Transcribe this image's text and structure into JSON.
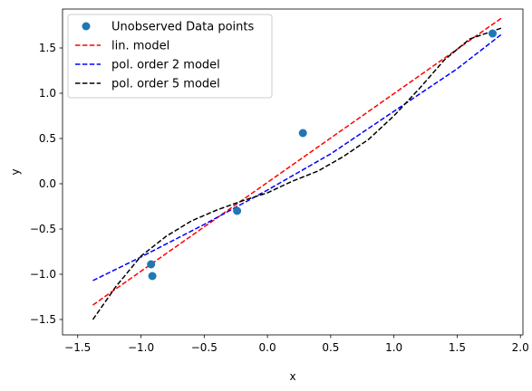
{
  "chart_data": {
    "type": "scatter",
    "xlabel": "x",
    "ylabel": "y",
    "xlim": [
      -1.62,
      2.02
    ],
    "ylim": [
      -1.67,
      1.93
    ],
    "x_ticks": [
      -1.5,
      -1.0,
      -0.5,
      0.0,
      0.5,
      1.0,
      1.5,
      2.0
    ],
    "x_tick_labels": [
      "−1.5",
      "−1.0",
      "−0.5",
      "0.0",
      "0.5",
      "1.0",
      "1.5",
      "2.0"
    ],
    "y_ticks": [
      -1.5,
      -1.0,
      -0.5,
      0.0,
      0.5,
      1.0,
      1.5
    ],
    "y_tick_labels": [
      "−1.5",
      "−1.0",
      "−0.5",
      "0.0",
      "0.5",
      "1.0",
      "1.5"
    ],
    "grid": false,
    "legend_position": "upper-left",
    "scatter": {
      "name": "Unobserved Data points",
      "color": "#1f77b4",
      "x": [
        -0.92,
        -0.91,
        -0.24,
        0.28,
        1.78
      ],
      "y": [
        -0.89,
        -1.02,
        -0.3,
        0.56,
        1.66
      ]
    },
    "series": [
      {
        "name": "lin. model",
        "color": "#ff0000",
        "dash": "dashed",
        "x": [
          -1.38,
          1.85
        ],
        "y": [
          -1.34,
          1.83
        ]
      },
      {
        "name": "pol. order 2 model",
        "color": "#0000ff",
        "dash": "dashed",
        "x": [
          -1.38,
          -1.0,
          -0.5,
          0.0,
          0.5,
          1.0,
          1.5,
          1.85
        ],
        "y": [
          -1.07,
          -0.81,
          -0.45,
          -0.07,
          0.33,
          0.8,
          1.27,
          1.65
        ]
      },
      {
        "name": "pol. order 5 model",
        "color": "#000000",
        "dash": "dashed",
        "x": [
          -1.38,
          -1.2,
          -1.0,
          -0.8,
          -0.6,
          -0.4,
          -0.2,
          0.0,
          0.2,
          0.4,
          0.6,
          0.8,
          1.0,
          1.2,
          1.4,
          1.6,
          1.85
        ],
        "y": [
          -1.5,
          -1.14,
          -0.8,
          -0.58,
          -0.41,
          -0.29,
          -0.19,
          -0.1,
          0.03,
          0.14,
          0.3,
          0.49,
          0.75,
          1.05,
          1.37,
          1.6,
          1.72
        ]
      }
    ]
  }
}
